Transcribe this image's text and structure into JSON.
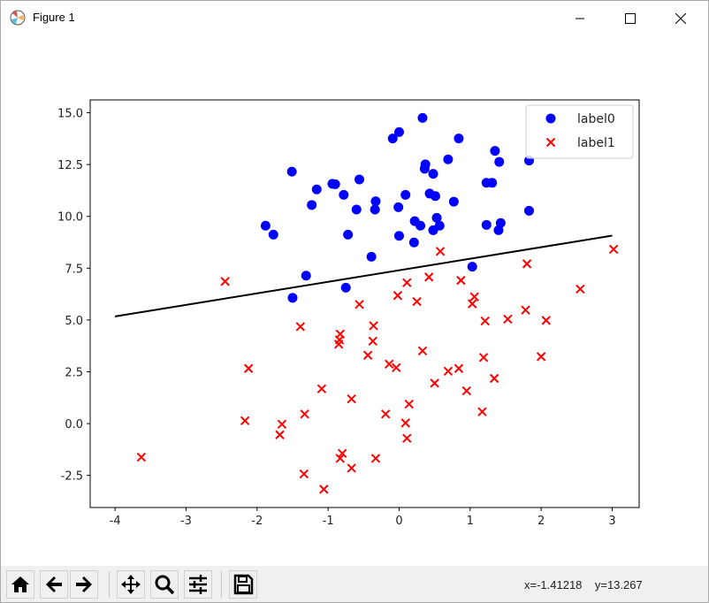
{
  "window": {
    "title": "Figure 1",
    "buttons": [
      "minimize",
      "maximize",
      "close"
    ]
  },
  "toolbar": {
    "buttons": [
      {
        "name": "home",
        "icon": "home-icon"
      },
      {
        "name": "back",
        "icon": "arrow-left-icon"
      },
      {
        "name": "forward",
        "icon": "arrow-right-icon"
      },
      {
        "name": "pan",
        "icon": "move-icon"
      },
      {
        "name": "zoom",
        "icon": "magnifier-icon"
      },
      {
        "name": "configure-subplots",
        "icon": "sliders-icon"
      },
      {
        "name": "save",
        "icon": "floppy-disk-icon"
      }
    ],
    "coords": "x=-1.41218    y=13.267"
  },
  "chart_data": {
    "type": "scatter",
    "title": "",
    "xlabel": "",
    "ylabel": "",
    "xlim": [
      -4.35,
      3.38
    ],
    "ylim": [
      -4.05,
      15.62
    ],
    "xticks": [
      -4,
      -3,
      -2,
      -1,
      0,
      1,
      2,
      3
    ],
    "xtick_labels": [
      "-4",
      "-3",
      "-2",
      "-1",
      "0",
      "1",
      "2",
      "3"
    ],
    "yticks": [
      -2.5,
      0,
      2.5,
      5,
      7.5,
      10,
      12.5,
      15
    ],
    "ytick_labels": [
      "-2.5",
      "0.0",
      "2.5",
      "5.0",
      "7.5",
      "10.0",
      "12.5",
      "15.0"
    ],
    "grid": false,
    "legend": "top-right",
    "series": [
      {
        "name": "label0",
        "marker": "circle",
        "color": "#0000ff",
        "points": [
          [
            0.33,
            14.75
          ],
          [
            0.0,
            14.07
          ],
          [
            -0.09,
            13.76
          ],
          [
            0.84,
            13.76
          ],
          [
            1.35,
            13.16
          ],
          [
            1.41,
            12.63
          ],
          [
            0.69,
            12.75
          ],
          [
            0.37,
            12.51
          ],
          [
            0.36,
            12.3
          ],
          [
            0.48,
            12.05
          ],
          [
            -1.51,
            12.16
          ],
          [
            -0.56,
            11.78
          ],
          [
            -1.16,
            11.3
          ],
          [
            -0.94,
            11.57
          ],
          [
            -0.9,
            11.55
          ],
          [
            -0.78,
            11.04
          ],
          [
            -1.23,
            10.55
          ],
          [
            -0.6,
            10.33
          ],
          [
            -0.33,
            10.73
          ],
          [
            -0.34,
            10.33
          ],
          [
            -0.01,
            10.44
          ],
          [
            0.09,
            11.04
          ],
          [
            0.43,
            11.1
          ],
          [
            0.51,
            10.98
          ],
          [
            0.77,
            10.71
          ],
          [
            1.23,
            11.62
          ],
          [
            1.31,
            11.62
          ],
          [
            1.83,
            12.69
          ],
          [
            1.83,
            10.27
          ],
          [
            -1.88,
            9.55
          ],
          [
            -1.77,
            9.12
          ],
          [
            -0.72,
            9.12
          ],
          [
            0.0,
            9.06
          ],
          [
            0.22,
            9.77
          ],
          [
            0.3,
            9.55
          ],
          [
            0.53,
            9.93
          ],
          [
            0.57,
            9.55
          ],
          [
            0.48,
            9.33
          ],
          [
            0.21,
            8.74
          ],
          [
            1.23,
            9.59
          ],
          [
            1.43,
            9.68
          ],
          [
            1.4,
            9.33
          ],
          [
            -0.39,
            8.05
          ],
          [
            1.03,
            7.57
          ],
          [
            -1.31,
            7.14
          ],
          [
            -0.75,
            6.56
          ],
          [
            -1.5,
            6.07
          ]
        ]
      },
      {
        "name": "label1",
        "marker": "x",
        "color": "#ff0000",
        "points": [
          [
            -2.45,
            6.86
          ],
          [
            -1.39,
            4.68
          ],
          [
            -0.83,
            4.32
          ],
          [
            -0.84,
            4.04
          ],
          [
            -0.85,
            3.83
          ],
          [
            -0.36,
            4.72
          ],
          [
            -0.37,
            3.98
          ],
          [
            -0.44,
            3.3
          ],
          [
            -0.56,
            5.75
          ],
          [
            -2.12,
            2.66
          ],
          [
            -1.09,
            1.68
          ],
          [
            -0.67,
            1.19
          ],
          [
            -1.33,
            0.46
          ],
          [
            -2.17,
            0.14
          ],
          [
            -1.65,
            -0.03
          ],
          [
            -1.68,
            -0.54
          ],
          [
            -0.19,
            0.46
          ],
          [
            -0.14,
            2.87
          ],
          [
            -0.04,
            2.7
          ],
          [
            -3.63,
            -1.62
          ],
          [
            -0.8,
            -1.44
          ],
          [
            -0.83,
            -1.68
          ],
          [
            -0.67,
            -2.15
          ],
          [
            -0.33,
            -1.68
          ],
          [
            -1.34,
            -2.43
          ],
          [
            -1.06,
            -3.17
          ],
          [
            -0.02,
            6.18
          ],
          [
            0.58,
            8.31
          ],
          [
            3.02,
            8.41
          ],
          [
            1.8,
            7.71
          ],
          [
            0.42,
            7.07
          ],
          [
            0.11,
            6.8
          ],
          [
            0.87,
            6.91
          ],
          [
            0.25,
            5.89
          ],
          [
            1.06,
            6.12
          ],
          [
            1.03,
            5.78
          ],
          [
            2.55,
            6.49
          ],
          [
            1.21,
            4.95
          ],
          [
            1.53,
            5.04
          ],
          [
            1.78,
            5.48
          ],
          [
            2.07,
            4.98
          ],
          [
            0.33,
            3.51
          ],
          [
            1.19,
            3.19
          ],
          [
            2.0,
            3.23
          ],
          [
            0.69,
            2.53
          ],
          [
            0.84,
            2.66
          ],
          [
            0.5,
            1.95
          ],
          [
            1.34,
            2.18
          ],
          [
            0.95,
            1.58
          ],
          [
            1.17,
            0.57
          ],
          [
            0.14,
            0.94
          ],
          [
            0.09,
            0.03
          ],
          [
            0.11,
            -0.71
          ]
        ]
      }
    ],
    "line": {
      "color": "#000000",
      "points": [
        [
          -4,
          5.17
        ],
        [
          3,
          9.07
        ]
      ]
    }
  }
}
